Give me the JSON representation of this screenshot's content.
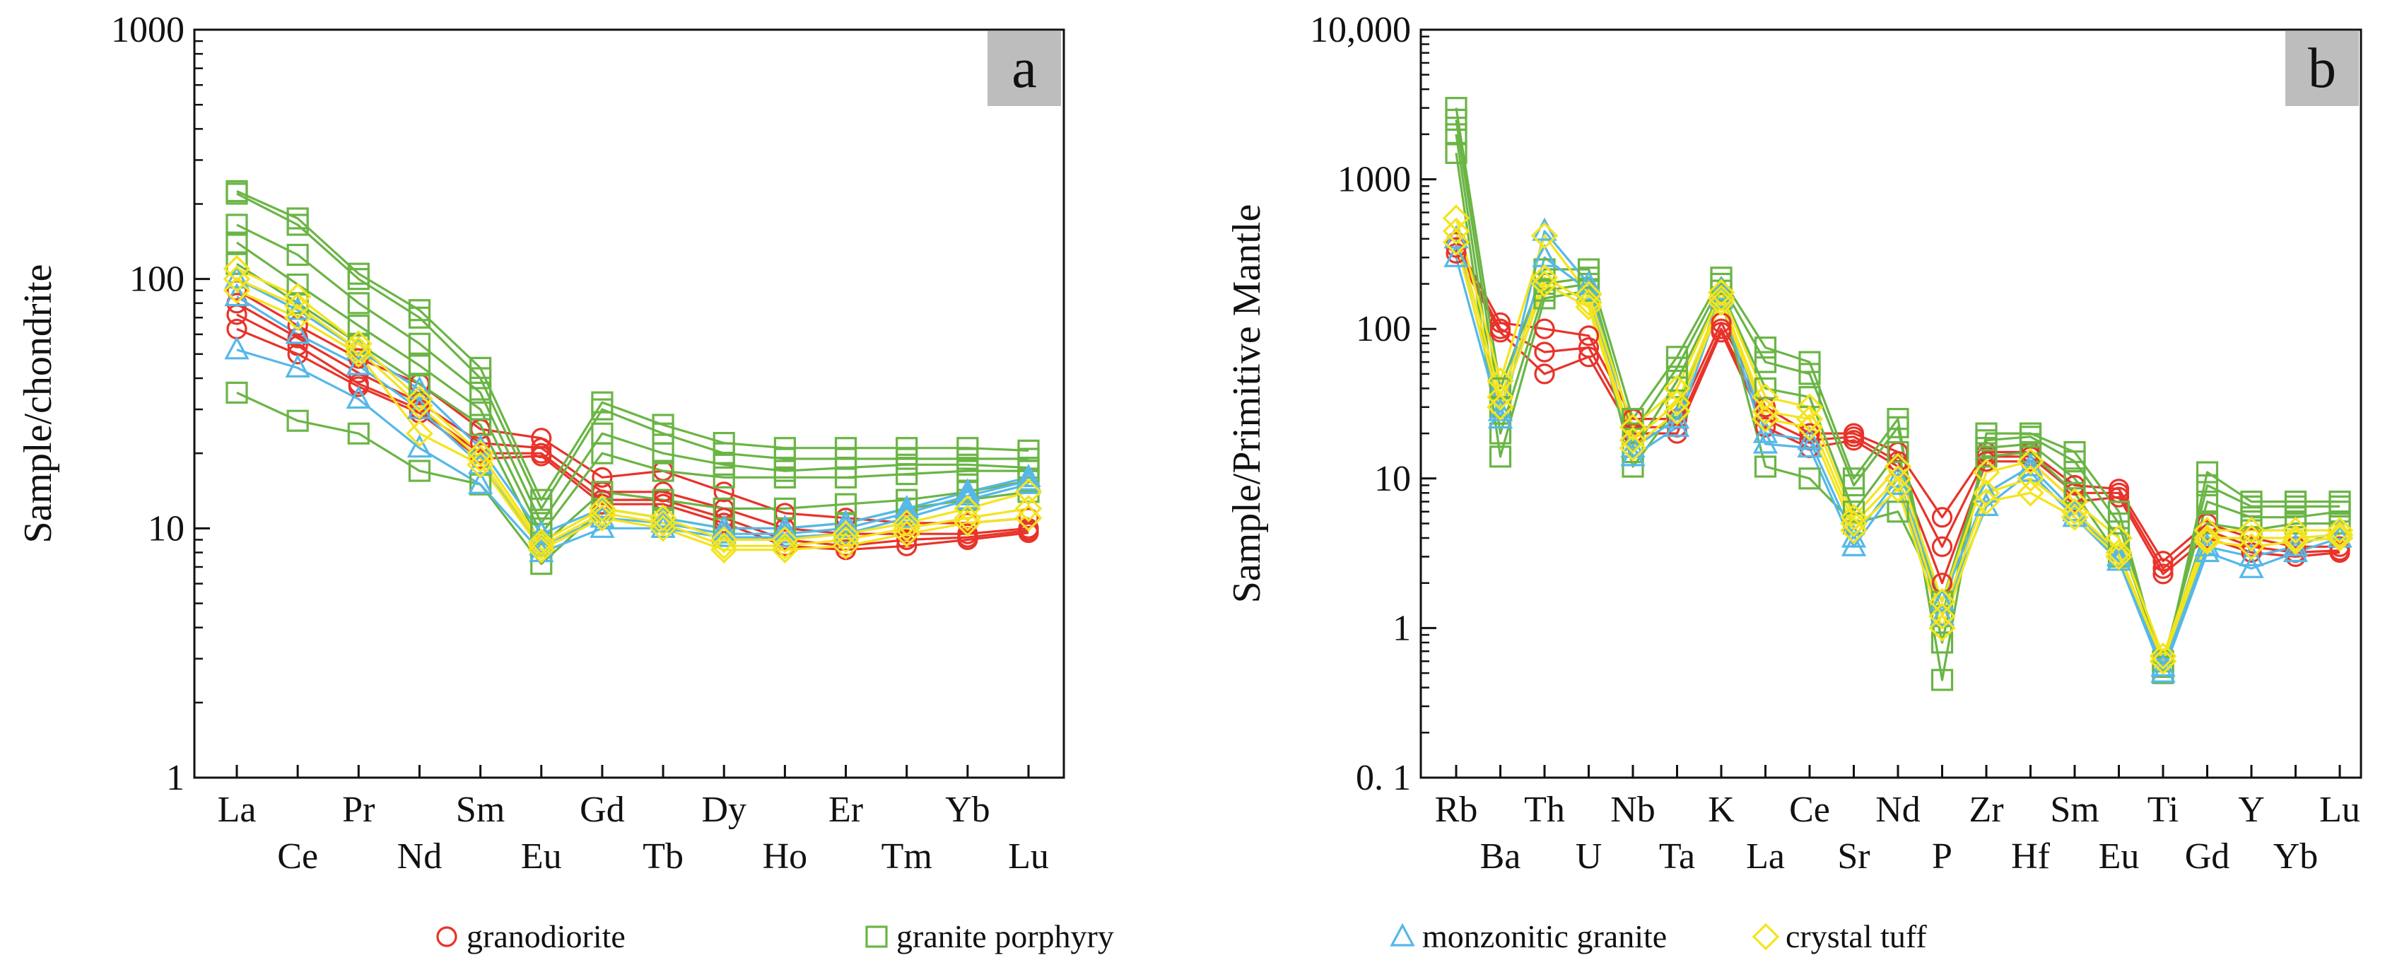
{
  "colors": {
    "granodiorite": "#e8332a",
    "granite porphyry": "#6ab545",
    "monzonitic granite": "#55b8e8",
    "crystal tuff": "#f4e41c",
    "panel_label_bg": "#bdbdbd",
    "axis": "#111111"
  },
  "legend": [
    {
      "label": "granodiorite",
      "marker": "circle"
    },
    {
      "label": "granite porphyry",
      "marker": "square"
    },
    {
      "label": "monzonitic granite",
      "marker": "triangle"
    },
    {
      "label": "crystal tuff",
      "marker": "diamond"
    }
  ],
  "chart_data": [
    {
      "panel": "a",
      "type": "line",
      "ylabel": "Sample/chondrite",
      "yscale": "log",
      "ylim": [
        1,
        1000
      ],
      "yticks": [
        "1",
        "10",
        "100",
        "1000"
      ],
      "x": [
        "La",
        "Ce",
        "Pr",
        "Nd",
        "Sm",
        "Eu",
        "Gd",
        "Tb",
        "Dy",
        "Ho",
        "Er",
        "Tm",
        "Yb",
        "Lu"
      ],
      "series": [
        {
          "group": "granodiorite",
          "marker": "circle",
          "values": [
            90,
            65,
            48,
            38,
            25,
            23,
            16,
            17,
            14,
            11.5,
            11,
            10.5,
            10.5,
            11
          ]
        },
        {
          "group": "granodiorite",
          "marker": "circle",
          "values": [
            80,
            58,
            42,
            32,
            22,
            21,
            14,
            14,
            12,
            10,
            9.5,
            9.5,
            9.5,
            10
          ]
        },
        {
          "group": "granodiorite",
          "marker": "circle",
          "values": [
            72,
            54,
            38,
            30,
            20,
            20,
            13,
            13,
            11,
            9,
            8.5,
            9,
            9.2,
            9.8
          ]
        },
        {
          "group": "granodiorite",
          "marker": "circle",
          "values": [
            63,
            50,
            37,
            29,
            19,
            19.5,
            12.5,
            12.5,
            10.5,
            8.5,
            8.2,
            8.5,
            9,
            9.6
          ]
        },
        {
          "group": "granite porphyry",
          "marker": "square",
          "values": [
            225,
            175,
            105,
            75,
            44,
            13,
            32,
            26,
            22,
            21,
            21,
            21,
            21,
            20.5
          ]
        },
        {
          "group": "granite porphyry",
          "marker": "square",
          "values": [
            220,
            165,
            100,
            70,
            40,
            12,
            30,
            24,
            20,
            19,
            19,
            19,
            19,
            19
          ]
        },
        {
          "group": "granite porphyry",
          "marker": "square",
          "values": [
            165,
            125,
            80,
            55,
            35,
            10.5,
            24,
            20,
            18,
            17,
            17.5,
            18,
            18,
            17.5
          ]
        },
        {
          "group": "granite porphyry",
          "marker": "square",
          "values": [
            140,
            95,
            65,
            45,
            30,
            9.5,
            20,
            17,
            16,
            16,
            16,
            16.5,
            17,
            17
          ]
        },
        {
          "group": "granite porphyry",
          "marker": "square",
          "values": [
            115,
            80,
            55,
            38,
            26,
            8.5,
            14,
            13,
            12,
            12,
            12.5,
            13,
            14,
            15.5
          ]
        },
        {
          "group": "granite porphyry",
          "marker": "square",
          "values": [
            35,
            27,
            24,
            17,
            15,
            7.2,
            12,
            11,
            10,
            10,
            10.5,
            12,
            13,
            14
          ]
        },
        {
          "group": "monzonitic granite",
          "marker": "triangle",
          "values": [
            100,
            75,
            52,
            36,
            21,
            9.5,
            12,
            11,
            10,
            10,
            10.5,
            12,
            14,
            16
          ]
        },
        {
          "group": "monzonitic granite",
          "marker": "triangle",
          "values": [
            85,
            60,
            45,
            30,
            18,
            8.5,
            11,
            10.5,
            9.5,
            9.5,
            10,
            11.5,
            13.5,
            15.5
          ]
        },
        {
          "group": "monzonitic granite",
          "marker": "triangle",
          "values": [
            52,
            44,
            33,
            21,
            15,
            8,
            10,
            10,
            9.2,
            9.2,
            9.5,
            11,
            13,
            15
          ]
        },
        {
          "group": "crystal tuff",
          "marker": "diamond",
          "values": [
            110,
            85,
            55,
            33,
            20,
            8.8,
            12,
            11,
            9,
            9,
            9.5,
            10.5,
            12,
            14
          ]
        },
        {
          "group": "crystal tuff",
          "marker": "diamond",
          "values": [
            100,
            78,
            52,
            31,
            19,
            8.5,
            11.5,
            10.5,
            8.5,
            8.5,
            9,
            10,
            11,
            12
          ]
        },
        {
          "group": "crystal tuff",
          "marker": "diamond",
          "values": [
            90,
            70,
            50,
            24,
            18,
            8.2,
            11,
            10,
            8.2,
            8.2,
            8.5,
            9.5,
            10.5,
            11
          ]
        }
      ]
    },
    {
      "panel": "b",
      "type": "line",
      "ylabel": "Sample/Primitive Mantle",
      "yscale": "log",
      "ylim": [
        0.1,
        10000
      ],
      "yticks": [
        "0. 1",
        "1",
        "10",
        "100",
        "1000",
        "10,000"
      ],
      "x": [
        "Rb",
        "Ba",
        "Th",
        "U",
        "Nb",
        "Ta",
        "K",
        "La",
        "Ce",
        "Sr",
        "Nd",
        "P",
        "Zr",
        "Hf",
        "Sm",
        "Eu",
        "Ti",
        "Gd",
        "Y",
        "Yb",
        "Lu"
      ],
      "series": [
        {
          "group": "granodiorite",
          "marker": "circle",
          "values": [
            380,
            110,
            100,
            90,
            25,
            25,
            110,
            30,
            20,
            20,
            15,
            5.5,
            15,
            15,
            9,
            8.5,
            2.8,
            5,
            4,
            3.5,
            3.5
          ]
        },
        {
          "group": "granodiorite",
          "marker": "circle",
          "values": [
            350,
            100,
            70,
            75,
            22,
            22,
            100,
            25,
            18,
            19,
            13,
            3.5,
            14,
            14,
            8,
            8,
            2.5,
            4.5,
            3.5,
            3.2,
            3.3
          ]
        },
        {
          "group": "granodiorite",
          "marker": "circle",
          "values": [
            320,
            95,
            50,
            65,
            20,
            20,
            95,
            22,
            16,
            18,
            12,
            2,
            13,
            13,
            7,
            7.5,
            2.3,
            4,
            3.2,
            3,
            3.2
          ]
        },
        {
          "group": "granite porphyry",
          "marker": "square",
          "values": [
            3000,
            40,
            250,
            250,
            25,
            65,
            220,
            75,
            60,
            10,
            25,
            0.45,
            20,
            20,
            15,
            6,
            0.5,
            11,
            7,
            7,
            7
          ]
        },
        {
          "group": "granite porphyry",
          "marker": "square",
          "values": [
            2500,
            30,
            200,
            220,
            20,
            55,
            200,
            60,
            50,
            9,
            22,
            0.8,
            18,
            19,
            13,
            5,
            0.55,
            9,
            6.5,
            6.5,
            6.5
          ]
        },
        {
          "group": "granite porphyry",
          "marker": "square",
          "values": [
            2000,
            20,
            180,
            200,
            15,
            45,
            180,
            40,
            35,
            6,
            15,
            1.2,
            16,
            17,
            10,
            4,
            0.6,
            7,
            5.5,
            5.5,
            6
          ]
        },
        {
          "group": "granite porphyry",
          "marker": "square",
          "values": [
            1500,
            14,
            160,
            180,
            12,
            30,
            160,
            12,
            10,
            5,
            6,
            1.5,
            14,
            15,
            8,
            3,
            0.6,
            5,
            4.5,
            5,
            5
          ]
        },
        {
          "group": "monzonitic granite",
          "marker": "triangle",
          "values": [
            400,
            28,
            450,
            200,
            16,
            25,
            180,
            20,
            18,
            4,
            10,
            1.5,
            8,
            12,
            6,
            3,
            0.55,
            3.5,
            3,
            3.5,
            4.5
          ]
        },
        {
          "group": "monzonitic granite",
          "marker": "triangle",
          "values": [
            300,
            25,
            300,
            180,
            14,
            22,
            160,
            17,
            16,
            3.5,
            9,
            1.2,
            6.5,
            11,
            5.5,
            2.8,
            0.5,
            3.2,
            2.5,
            3.2,
            4
          ]
        },
        {
          "group": "crystal tuff",
          "marker": "diamond",
          "values": [
            550,
            45,
            420,
            170,
            22,
            40,
            175,
            35,
            30,
            5.5,
            12,
            1.5,
            11,
            13,
            7,
            4,
            0.65,
            4.5,
            4.5,
            4.5,
            4.5
          ]
        },
        {
          "group": "crystal tuff",
          "marker": "diamond",
          "values": [
            450,
            35,
            220,
            150,
            18,
            32,
            160,
            28,
            25,
            5,
            10,
            1.2,
            8,
            10,
            6,
            3.2,
            0.6,
            4,
            4,
            4,
            4.2
          ]
        },
        {
          "group": "crystal tuff",
          "marker": "diamond",
          "values": [
            380,
            30,
            200,
            140,
            16,
            28,
            150,
            25,
            22,
            4.5,
            8.5,
            1,
            7,
            8,
            5.5,
            3,
            0.6,
            3.8,
            3.5,
            3.8,
            4
          ]
        }
      ]
    }
  ]
}
